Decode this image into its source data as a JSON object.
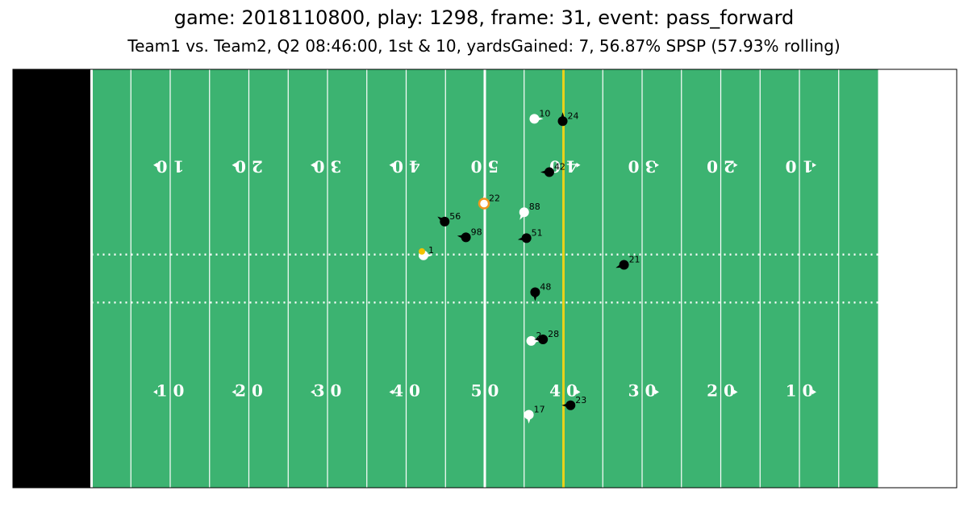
{
  "title": "game: 2018110800, play: 1298, frame: 31, event: pass_forward",
  "subtitle": "Team1 vs. Team2, Q2 08:46:00, 1st & 10, yardsGained: 7, 56.87% SPSP (57.93% rolling)",
  "colors": {
    "field": "#3cb371",
    "endzone": "#000000",
    "line_of_scrimmage": "#e8d21a",
    "offense": "#ffffff",
    "defense": "#000000",
    "ball": "#f2c200",
    "highlight": "#f0961e"
  },
  "chart_data": {
    "type": "scatter",
    "description_free": true,
    "x_range": [
      0,
      120
    ],
    "y_range": [
      0,
      53.3
    ],
    "yard_numbers": [
      "10",
      "20",
      "30",
      "40",
      "50",
      "40",
      "30",
      "20",
      "10"
    ],
    "line_of_scrimmage_x": 70,
    "hash_y": [
      23.6,
      29.7
    ],
    "ball": {
      "x": 52.0,
      "y": 30.1
    },
    "players": [
      {
        "label": "10",
        "team": "offense",
        "x": 66.3,
        "y": 47.0,
        "dir": 0
      },
      {
        "label": "24",
        "team": "defense",
        "x": 69.9,
        "y": 46.7,
        "dir": 270
      },
      {
        "label": "42",
        "team": "defense",
        "x": 68.2,
        "y": 40.2,
        "dir": 180
      },
      {
        "label": "22",
        "team": "offense",
        "x": 59.9,
        "y": 36.2,
        "dir": 270,
        "highlight": true
      },
      {
        "label": "88",
        "team": "offense",
        "x": 65.0,
        "y": 35.1,
        "dir": 120
      },
      {
        "label": "56",
        "team": "defense",
        "x": 54.9,
        "y": 33.9,
        "dir": 215
      },
      {
        "label": "98",
        "team": "defense",
        "x": 57.6,
        "y": 31.9,
        "dir": 190
      },
      {
        "label": "51",
        "team": "defense",
        "x": 65.3,
        "y": 31.8,
        "dir": 170
      },
      {
        "label": "1",
        "team": "offense",
        "x": 52.2,
        "y": 29.6,
        "dir": 0
      },
      {
        "label": "21",
        "team": "defense",
        "x": 77.7,
        "y": 28.4,
        "dir": 160
      },
      {
        "label": "48",
        "team": "defense",
        "x": 66.4,
        "y": 24.9,
        "dir": 90
      },
      {
        "label": "2",
        "team": "offense",
        "x": 65.9,
        "y": 18.7,
        "dir": 0
      },
      {
        "label": "28",
        "team": "defense",
        "x": 67.4,
        "y": 18.9,
        "dir": 180
      },
      {
        "label": "17",
        "team": "offense",
        "x": 65.6,
        "y": 9.3,
        "dir": 90
      },
      {
        "label": "23",
        "team": "defense",
        "x": 70.9,
        "y": 10.5,
        "dir": 180
      }
    ]
  }
}
